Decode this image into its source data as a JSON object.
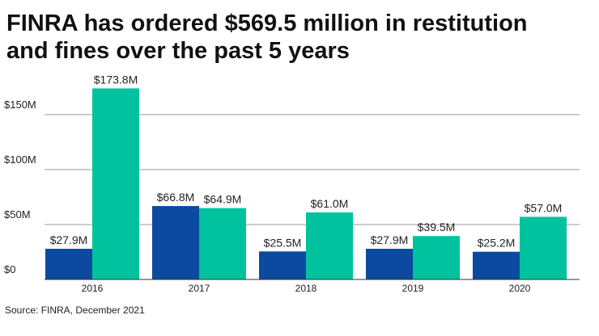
{
  "chart_data": {
    "type": "bar",
    "title": "FINRA has ordered $569.5 million in restitution and fines over the past 5 years",
    "categories": [
      "2016",
      "2017",
      "2018",
      "2019",
      "2020"
    ],
    "series": [
      {
        "color": "#0b4a9e",
        "values": [
          27.9,
          66.8,
          25.5,
          27.9,
          25.2
        ],
        "value_labels": [
          "$27.9M",
          "$66.8M",
          "$25.5M",
          "$27.9M",
          "$25.2M"
        ]
      },
      {
        "color": "#00c29f",
        "values": [
          173.8,
          64.9,
          61.0,
          39.5,
          57.0
        ],
        "value_labels": [
          "$173.8M",
          "$64.9M",
          "$61.0M",
          "$39.5M",
          "$57.0M"
        ]
      }
    ],
    "ylim": [
      0,
      180
    ],
    "yticks": [
      {
        "value": 0,
        "label": "$0"
      },
      {
        "value": 50,
        "label": "$50M"
      },
      {
        "value": 100,
        "label": "$100M"
      },
      {
        "value": 150,
        "label": "$150M"
      }
    ],
    "grid": true,
    "source": "Source: FINRA, December 2021"
  }
}
